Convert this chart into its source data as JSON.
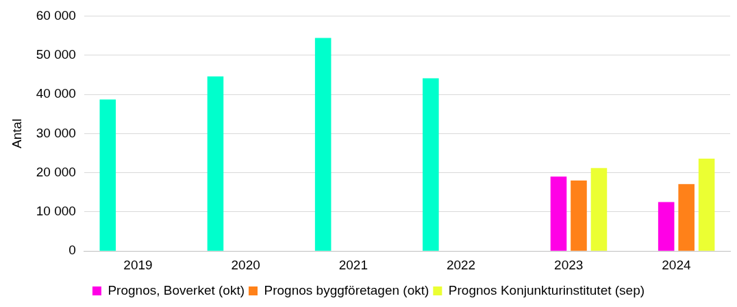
{
  "chart_data": {
    "type": "bar",
    "ylabel": "Antal",
    "categories": [
      "2019",
      "2020",
      "2021",
      "2022",
      "2023",
      "2024"
    ],
    "series": [
      {
        "color": "#00ffcc",
        "values": [
          38700,
          44600,
          54400,
          44100,
          null,
          null
        ]
      },
      {
        "name": "Prognos, Boverket (okt)",
        "color": "#ff00e6",
        "values": [
          null,
          null,
          null,
          null,
          19000,
          12500
        ]
      },
      {
        "name": "Prognos byggföretagen (okt)",
        "color": "#ff8119",
        "values": [
          null,
          null,
          null,
          null,
          18000,
          17100
        ]
      },
      {
        "name": "Prognos Konjunkturinstitutet (sep)",
        "color": "#ebff33",
        "values": [
          null,
          null,
          null,
          null,
          21200,
          23600
        ]
      }
    ],
    "ylim": [
      0,
      60000
    ],
    "yticks": [
      {
        "value": 0,
        "label": "0"
      },
      {
        "value": 10000,
        "label": "10 000"
      },
      {
        "value": 20000,
        "label": "20 000"
      },
      {
        "value": 30000,
        "label": "30 000"
      },
      {
        "value": 40000,
        "label": "40 000"
      },
      {
        "value": 50000,
        "label": "50 000"
      },
      {
        "value": 60000,
        "label": "60 000"
      }
    ],
    "grid": "y",
    "legend": "bottom"
  }
}
